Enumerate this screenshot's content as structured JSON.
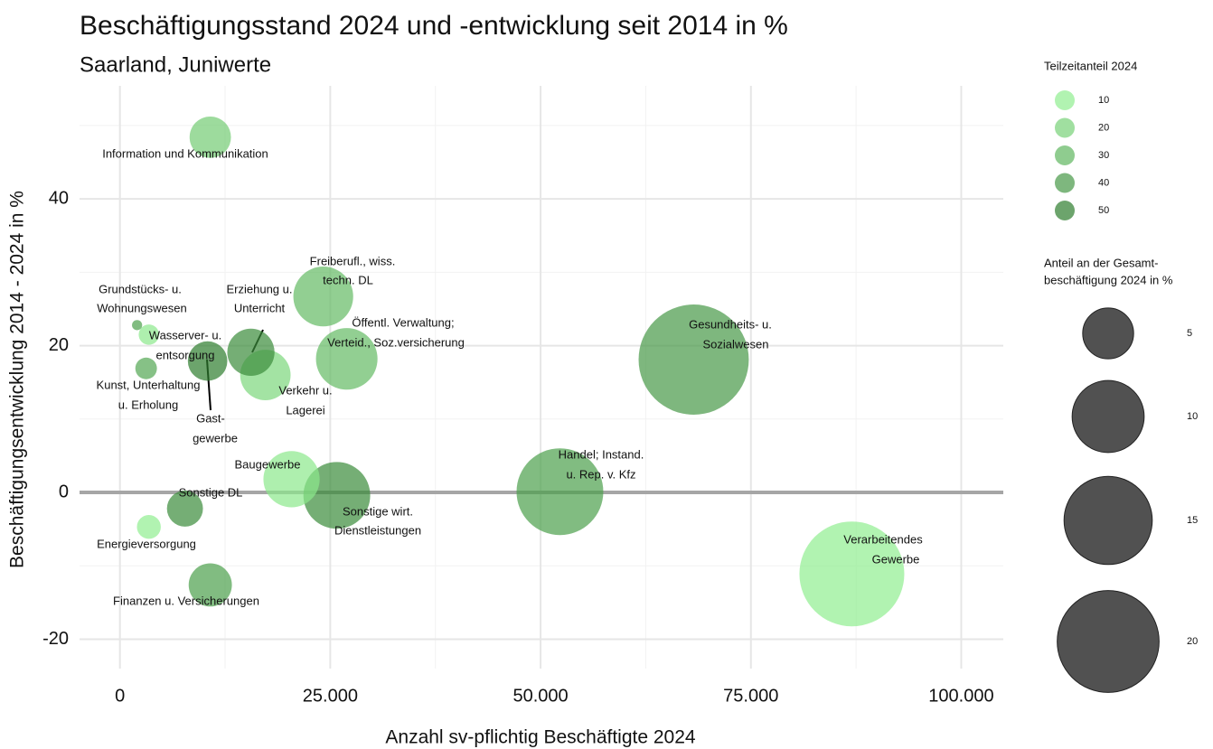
{
  "chart_data": {
    "type": "bubble",
    "title": "Beschäftigungsstand 2024 und -entwicklung seit 2014 in %",
    "subtitle": "Saarland, Juniwerte",
    "x_label": "Anzahl sv-pflichtig Beschäftigte 2024",
    "y_label": "Beschäftigungsentwicklung 2014 - 2024 in %",
    "labels": [
      [
        "Information und Kommunikation"
      ],
      [
        "Freiberufl., wiss.",
        "techn. DL"
      ],
      [
        "Grundstücks- u.",
        "Wohnungswesen"
      ],
      [
        "Wasserver- u.",
        "entsorgung"
      ],
      [
        "Erziehung u.",
        "Unterricht"
      ],
      [
        "Kunst, Unterhaltung",
        "u. Erholung"
      ],
      [
        "Gast-",
        "gewerbe"
      ],
      [
        "Verkehr u.",
        "Lagerei"
      ],
      [
        "Öffentl. Verwaltung;",
        "Verteid., Soz.versicherung"
      ],
      [
        "Gesundheits- u.",
        "Sozialwesen"
      ],
      [
        "Baugewerbe"
      ],
      [
        "Sonstige wirt.",
        "Dienstleistungen"
      ],
      [
        "Handel; Instand.",
        "u. Rep. v. Kfz"
      ],
      [
        "Sonstige DL"
      ],
      [
        "Energieversorgung"
      ],
      [
        "Finanzen u. Versicherungen"
      ],
      [
        "Verarbeitendes",
        "Gewerbe"
      ]
    ],
    "x": [
      10741,
      24170,
      2040,
      3440,
      15570,
      3115,
      10420,
      17290,
      26960,
      68200,
      20400,
      25780,
      52300,
      7730,
      3440,
      10740,
      87000
    ],
    "values": [
      48.4,
      26.7,
      22.8,
      21.5,
      19.1,
      16.9,
      17.9,
      16.0,
      18.2,
      18.1,
      1.8,
      -0.4,
      0.1,
      -2.2,
      -4.7,
      -12.6,
      -11.1
    ],
    "sizes": [
      3.3,
      6.9,
      0.2,
      0.8,
      4.3,
      0.9,
      3.0,
      4.9,
      7.3,
      23.4,
      6.1,
      8.6,
      14.5,
      2.5,
      1.1,
      3.6,
      21.2
    ],
    "part_time": [
      22,
      28,
      38,
      12,
      45,
      35,
      50,
      18,
      28,
      40,
      12,
      45,
      38,
      45,
      10,
      38,
      10
    ],
    "color_low": "#90ee90",
    "color_high": "#2e7d2e",
    "size_color": "#333333",
    "xlim": [
      -4800,
      105000
    ],
    "ylim": [
      -24,
      55.4
    ],
    "xticks": [
      0,
      {
        "value": 25000,
        "label": "25.000"
      },
      {
        "value": 50000,
        "label": "50.000"
      },
      {
        "value": 75000,
        "label": "75.000"
      },
      {
        "value": 100000,
        "label": "100.000"
      }
    ],
    "yticks": [
      -20,
      0,
      20,
      40
    ],
    "x_minor_ticks": [
      12500,
      37500,
      62500,
      87500
    ],
    "y_minor_ticks": [
      -10,
      10,
      30,
      50
    ],
    "grid": true,
    "color_legend": {
      "title": "Teilzeitanteil 2024",
      "values": [
        10,
        20,
        30,
        40,
        50
      ]
    },
    "size_legend": {
      "title": [
        "Anteil an der Gesamt-",
        "beschäftigung 2024 in %"
      ],
      "values": [
        5,
        10,
        15,
        20
      ]
    }
  }
}
